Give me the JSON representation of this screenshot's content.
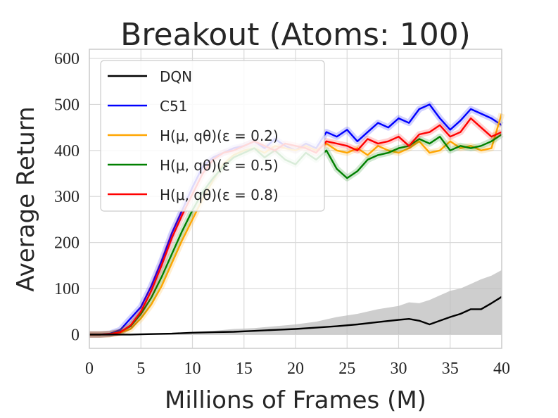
{
  "chart_data": {
    "type": "line",
    "title": "Breakout (Atoms: 100)",
    "xlabel": "Millions of Frames (M)",
    "ylabel": "Average Return",
    "xlim": [
      0,
      40
    ],
    "ylim": [
      -30,
      620
    ],
    "xticks": [
      0,
      5,
      10,
      15,
      20,
      25,
      30,
      35,
      40
    ],
    "yticks": [
      0,
      100,
      200,
      300,
      400,
      500,
      600
    ],
    "grid": true,
    "legend_position": "top-left",
    "legend_entries": [
      "DQN",
      "C51",
      "H(μ, qθ)(ε = 0.2)",
      "H(μ, qθ)(ε = 0.5)",
      "H(μ, qθ)(ε = 0.8)"
    ],
    "series": [
      {
        "name": "DQN",
        "color": "#000000",
        "x": [
          0,
          2,
          4,
          6,
          8,
          10,
          12,
          14,
          16,
          18,
          20,
          22,
          24,
          26,
          28,
          30,
          31,
          32,
          33,
          34,
          35,
          36,
          37,
          38,
          39,
          40
        ],
        "y": [
          0,
          0,
          0,
          1,
          2,
          4,
          5,
          6,
          8,
          10,
          12,
          15,
          18,
          22,
          27,
          32,
          34,
          30,
          22,
          30,
          38,
          45,
          55,
          55,
          68,
          82
        ],
        "band_upper": [
          0,
          0,
          0,
          2,
          4,
          6,
          8,
          12,
          14,
          18,
          22,
          28,
          38,
          45,
          55,
          62,
          70,
          68,
          75,
          85,
          95,
          100,
          110,
          120,
          128,
          140
        ],
        "band_lower": [
          0,
          0,
          0,
          0,
          0,
          0,
          0,
          0,
          0,
          0,
          0,
          0,
          0,
          0,
          0,
          0,
          0,
          0,
          0,
          0,
          0,
          0,
          0,
          0,
          0,
          0
        ]
      },
      {
        "name": "C51",
        "color": "#0000ff",
        "x": [
          0,
          1,
          2,
          3,
          4,
          5,
          6,
          7,
          8,
          9,
          10,
          11,
          12,
          13,
          14,
          15,
          16,
          17,
          18,
          19,
          20,
          21,
          22,
          23,
          24,
          25,
          26,
          27,
          28,
          29,
          30,
          31,
          32,
          33,
          34,
          35,
          36,
          37,
          38,
          39,
          40
        ],
        "y": [
          0,
          0,
          2,
          10,
          35,
          60,
          105,
          160,
          220,
          270,
          320,
          365,
          385,
          395,
          405,
          410,
          420,
          405,
          425,
          410,
          400,
          415,
          405,
          440,
          430,
          445,
          420,
          440,
          460,
          450,
          470,
          460,
          490,
          500,
          470,
          445,
          465,
          490,
          480,
          470,
          455
        ]
      },
      {
        "name": "H(μ, qθ)(ε = 0.2)",
        "color": "#ffa500",
        "x": [
          0,
          1,
          2,
          3,
          4,
          5,
          6,
          7,
          8,
          9,
          10,
          11,
          12,
          13,
          14,
          15,
          16,
          17,
          18,
          19,
          20,
          21,
          22,
          23,
          24,
          25,
          26,
          27,
          28,
          29,
          30,
          31,
          32,
          33,
          34,
          35,
          36,
          37,
          38,
          39,
          40
        ],
        "y": [
          0,
          0,
          1,
          4,
          12,
          35,
          65,
          105,
          155,
          205,
          250,
          295,
          335,
          370,
          390,
          400,
          405,
          395,
          410,
          405,
          400,
          410,
          400,
          415,
          400,
          395,
          405,
          390,
          410,
          400,
          395,
          405,
          420,
          395,
          400,
          420,
          405,
          410,
          400,
          405,
          480
        ]
      },
      {
        "name": "H(μ, qθ)(ε = 0.5)",
        "color": "#008000",
        "x": [
          0,
          1,
          2,
          3,
          4,
          5,
          6,
          7,
          8,
          9,
          10,
          11,
          12,
          13,
          14,
          15,
          16,
          17,
          18,
          19,
          20,
          21,
          22,
          23,
          24,
          25,
          26,
          27,
          28,
          29,
          30,
          31,
          32,
          33,
          34,
          35,
          36,
          37,
          38,
          39,
          40
        ],
        "y": [
          0,
          0,
          1,
          6,
          18,
          45,
          80,
          125,
          175,
          225,
          270,
          310,
          340,
          365,
          385,
          395,
          405,
          385,
          400,
          380,
          370,
          395,
          380,
          400,
          360,
          340,
          355,
          380,
          390,
          395,
          405,
          410,
          425,
          415,
          430,
          400,
          410,
          405,
          410,
          420,
          435
        ]
      },
      {
        "name": "H(μ, qθ)(ε = 0.8)",
        "color": "#ff0000",
        "x": [
          0,
          1,
          2,
          3,
          4,
          5,
          6,
          7,
          8,
          9,
          10,
          11,
          12,
          13,
          14,
          15,
          16,
          17,
          18,
          19,
          20,
          21,
          22,
          23,
          24,
          25,
          26,
          27,
          28,
          29,
          30,
          31,
          32,
          33,
          34,
          35,
          36,
          37,
          38,
          39,
          40
        ],
        "y": [
          0,
          0,
          1,
          5,
          20,
          50,
          95,
          150,
          210,
          260,
          305,
          350,
          380,
          395,
          400,
          410,
          420,
          410,
          400,
          415,
          410,
          405,
          395,
          420,
          415,
          410,
          400,
          425,
          415,
          420,
          430,
          410,
          435,
          440,
          455,
          430,
          440,
          470,
          450,
          430,
          440
        ]
      }
    ]
  }
}
